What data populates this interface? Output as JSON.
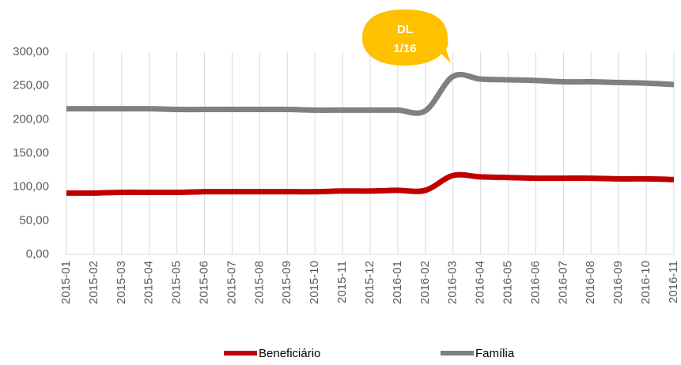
{
  "chart_data": {
    "type": "line",
    "categories": [
      "2015-01",
      "2015-02",
      "2015-03",
      "2015-04",
      "2015-05",
      "2015-06",
      "2015-07",
      "2015-08",
      "2015-09",
      "2015-10",
      "2015-11",
      "2015-12",
      "2016-01",
      "2016-02",
      "2016-03",
      "2016-04",
      "2016-05",
      "2016-06",
      "2016-07",
      "2016-08",
      "2016-09",
      "2016-10",
      "2016-11"
    ],
    "series": [
      {
        "name": "Beneficiário",
        "color": "#c00000",
        "values": [
          91,
          91,
          92,
          92,
          92,
          93,
          93,
          93,
          93,
          93,
          94,
          94,
          95,
          95,
          117,
          115,
          114,
          113,
          113,
          113,
          112,
          112,
          111
        ]
      },
      {
        "name": "Família",
        "color": "#808080",
        "values": [
          216,
          216,
          216,
          216,
          215,
          215,
          215,
          215,
          215,
          214,
          214,
          214,
          214,
          213,
          264,
          260,
          259,
          258,
          256,
          256,
          255,
          254,
          252
        ]
      }
    ],
    "ylim": [
      0,
      300
    ],
    "yticks": [
      {
        "value": 0,
        "label": "0,00"
      },
      {
        "value": 50,
        "label": "50,00"
      },
      {
        "value": 100,
        "label": "100,00"
      },
      {
        "value": 150,
        "label": "150,00"
      },
      {
        "value": 200,
        "label": "200,00"
      },
      {
        "value": 250,
        "label": "250,00"
      },
      {
        "value": 300,
        "label": "300,00"
      }
    ],
    "grid": true,
    "legend": "bottom",
    "annotation": {
      "lines": [
        "DL",
        "1/16"
      ],
      "color": "#ffc000"
    }
  }
}
